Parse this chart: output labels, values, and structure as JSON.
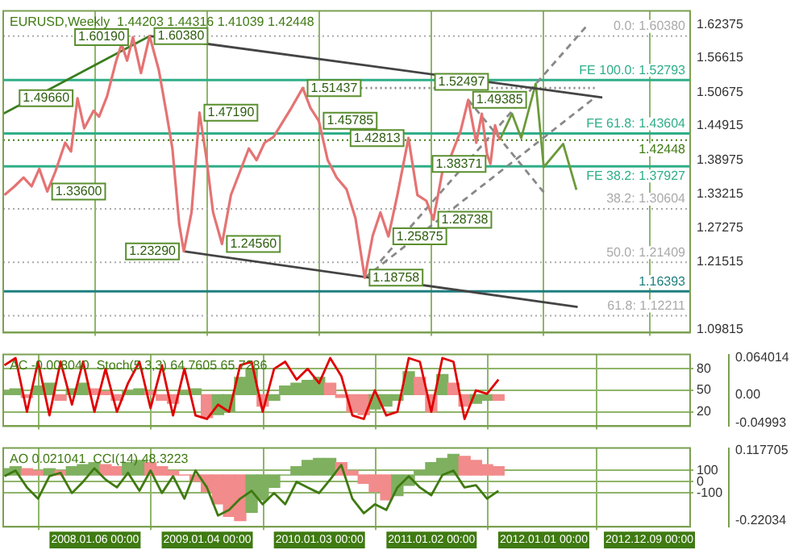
{
  "chart_data": [
    {
      "type": "line",
      "title": "EURUSD,Weekly  1.44203 1.44316 1.41039 1.42448",
      "marker": "none",
      "grid": "x",
      "tick_labels": "y",
      "xlim": [
        "2007-03-14",
        "2013-04-20"
      ],
      "xticks": [
        {
          "value": "2008-01-06",
          "label": null
        },
        {
          "value": "2009-01-04",
          "label": null
        },
        {
          "value": "2010-01-03",
          "label": null
        },
        {
          "value": "2011-01-02",
          "label": null
        },
        {
          "value": "2012-01-01",
          "label": null
        },
        {
          "value": "2012-12-09",
          "label": null
        }
      ],
      "ylim": [
        1.093,
        1.647
      ],
      "yticks": [
        1.62375,
        1.56615,
        1.50675,
        1.44915,
        1.38975,
        1.33215,
        1.27275,
        1.21515,
        1.09815
      ],
      "series": [
        {
          "color": "#e57373",
          "x": [
            "2007-03-18",
            "2007-04-20",
            "2007-05-19",
            "2007-06-14",
            "2007-07-09",
            "2007-08-04",
            "2007-08-30",
            "2007-10-01",
            "2007-10-20",
            "2007-11-10",
            "2007-12-02",
            "2008-01-01",
            "2008-01-19",
            "2008-02-14",
            "2008-03-14",
            "2008-04-01",
            "2008-04-19",
            "2008-05-08",
            "2008-06-03",
            "2008-07-01",
            "2008-07-31",
            "2008-08-25",
            "2008-09-13",
            "2008-10-05",
            "2008-10-20",
            "2008-11-14",
            "2008-12-10",
            "2009-01-01",
            "2009-01-23",
            "2009-02-21",
            "2009-03-22",
            "2009-04-20",
            "2009-05-19",
            "2009-06-13",
            "2009-07-09",
            "2009-08-07",
            "2009-09-05",
            "2009-10-04",
            "2009-11-10",
            "2009-12-05",
            "2010-01-01",
            "2010-01-30",
            "2010-02-28",
            "2010-04-01",
            "2010-04-30",
            "2010-05-30",
            "2010-06-25",
            "2010-07-20",
            "2010-08-15",
            "2010-09-13",
            "2010-10-19",
            "2010-11-17",
            "2010-12-16",
            "2011-01-08",
            "2011-02-06",
            "2011-03-08",
            "2011-04-06",
            "2011-05-01",
            "2011-05-27",
            "2011-06-14",
            "2011-07-01",
            "2011-07-12",
            "2011-07-27",
            "2011-08-11"
          ],
          "values": [
            1.33,
            1.345,
            1.36,
            1.345,
            1.375,
            1.336,
            1.37,
            1.42,
            1.405,
            1.4966,
            1.445,
            1.475,
            1.465,
            1.5,
            1.56,
            1.59,
            1.5615,
            1.6019,
            1.54,
            1.6038,
            1.545,
            1.47,
            1.41,
            1.28,
            1.2329,
            1.3,
            1.4719,
            1.395,
            1.3,
            1.2456,
            1.33,
            1.37,
            1.41,
            1.39,
            1.42,
            1.43,
            1.455,
            1.48,
            1.5143,
            1.48,
            1.4578,
            1.39,
            1.36,
            1.34,
            1.29,
            1.1875,
            1.26,
            1.3,
            1.2587,
            1.33,
            1.4281,
            1.33,
            1.32,
            1.28738,
            1.37,
            1.4,
            1.44,
            1.49385,
            1.42,
            1.47,
            1.4,
            1.38371,
            1.45,
            1.42448
          ]
        },
        {
          "color": "#3a7d1e",
          "x": [
            "2007-03-14",
            "2008-07-01"
          ],
          "values": [
            1.47,
            1.6038
          ]
        },
        {
          "color": "#444444",
          "x": [
            "2008-07-01",
            "2012-07-09"
          ],
          "values": [
            1.6038,
            1.498
          ]
        },
        {
          "color": "#444444",
          "x": [
            "2008-10-20",
            "2012-04-20"
          ],
          "values": [
            1.2329,
            1.137
          ]
        },
        {
          "color": "#6b9a3a",
          "x": [
            "2011-08-11",
            "2011-09-20",
            "2011-10-20",
            "2011-12-06",
            "2012-01-01",
            "2012-03-04",
            "2012-04-16"
          ],
          "values": [
            1.42448,
            1.47,
            1.428,
            1.522,
            1.378,
            1.418,
            1.339
          ]
        },
        {
          "color": "#888888",
          "line_style": "dashed",
          "x": [
            "2010-07-20",
            "2012-05-19"
          ],
          "values": [
            1.216,
            1.621
          ]
        },
        {
          "color": "#888888",
          "line_style": "dashed",
          "x": [
            "2010-05-30",
            "2012-06-20"
          ],
          "values": [
            1.1875,
            1.5
          ]
        },
        {
          "color": "#888888",
          "line_style": "dashed",
          "x": [
            "2011-05-01",
            "2012-01-08"
          ],
          "values": [
            1.49385,
            1.33
          ]
        },
        {
          "color": "#888888",
          "line_style": "dotted",
          "x": [
            "2009-11-10",
            "2012-06-17"
          ],
          "values": [
            1.5143,
            1.5143
          ]
        }
      ],
      "ref_lines": [
        {
          "axis": "y",
          "value": 1.6038,
          "label": "0.0: 1.60380",
          "color": "#aaaaaa",
          "line_style": "dotted"
        },
        {
          "axis": "y",
          "value": 1.52793,
          "label": "FE 100.0: 1.52793",
          "color": "#2fae88"
        },
        {
          "axis": "y",
          "value": 1.43604,
          "label": "FE 61.8: 1.43604",
          "color": "#2fae88"
        },
        {
          "axis": "y",
          "value": 1.42448,
          "label": "1.42448",
          "color": "#3f7a12",
          "line_style": "dotted"
        },
        {
          "axis": "y",
          "value": 1.37927,
          "label": "FE 38.2: 1.37927",
          "color": "#2fae88"
        },
        {
          "axis": "y",
          "value": 1.30604,
          "label": "38.2: 1.30604",
          "color": "#aaaaaa",
          "line_style": "dotted"
        },
        {
          "axis": "y",
          "value": 1.21409,
          "label": "50.0: 1.21409",
          "color": "#aaaaaa",
          "line_style": "dotted"
        },
        {
          "axis": "y",
          "value": 1.16393,
          "label": "1.16393",
          "color": "#1e7f7f"
        },
        {
          "axis": "y",
          "value": 1.12211,
          "label": "61.8: 1.12211",
          "color": "#aaaaaa",
          "line_style": "dotted"
        }
      ],
      "annotations": [
        {
          "text": "1.60380",
          "x": "2008-07-01",
          "y": 1.6038
        },
        {
          "text": "1.60190",
          "x": "2008-05-08",
          "y": 1.6019
        },
        {
          "text": "1.49660",
          "x": "2007-11-10",
          "y": 1.4966
        },
        {
          "text": "1.33600",
          "x": "2007-08-04",
          "y": 1.336
        },
        {
          "text": "1.47190",
          "x": "2008-12-10",
          "y": 1.4719
        },
        {
          "text": "1.24560",
          "x": "2009-02-21",
          "y": 1.2456
        },
        {
          "text": "1.23290",
          "x": "2008-10-20",
          "y": 1.2329
        },
        {
          "text": "1.51437",
          "x": "2009-11-10",
          "y": 1.5143
        },
        {
          "text": "1.45785",
          "x": "2010-01-01",
          "y": 1.4578
        },
        {
          "text": "1.18758",
          "x": "2010-05-30",
          "y": 1.1875
        },
        {
          "text": "1.42813",
          "x": "2010-10-19",
          "y": 1.4281
        },
        {
          "text": "1.25875",
          "x": "2010-08-15",
          "y": 1.2587
        },
        {
          "text": "1.28738",
          "x": "2011-01-08",
          "y": 1.28738
        },
        {
          "text": "1.49385",
          "x": "2011-05-01",
          "y": 1.49385
        },
        {
          "text": "1.52497",
          "x": "2011-07-20",
          "y": 1.52497
        },
        {
          "text": "1.38371",
          "x": "2011-07-12",
          "y": 1.38371
        }
      ]
    },
    {
      "type": "line",
      "title": "AC -0.008040  Stoch(5,3,3) 64.7605 65.7286",
      "marker": "none",
      "grid": true,
      "tick_labels": "y",
      "xlim": [
        "2007-03-14",
        "2013-04-20"
      ],
      "xticks": [
        {
          "value": "2008-01-06",
          "label": null
        },
        {
          "value": "2009-01-04",
          "label": null
        },
        {
          "value": "2010-01-03",
          "label": null
        },
        {
          "value": "2011-01-02",
          "label": null
        },
        {
          "value": "2012-01-01",
          "label": null
        },
        {
          "value": "2012-12-09",
          "label": null
        }
      ],
      "ylim": [
        0,
        100
      ],
      "yticks": [
        20,
        50,
        80
      ],
      "y2lim": [
        -0.055,
        0.07
      ],
      "y2ticks": [
        -0.04993,
        {
          "value": 0,
          "label": "0.00"
        },
        0.064014
      ],
      "series": [
        {
          "type": "bar",
          "axis": "y2",
          "x": [
            "2007-03-18",
            "2007-04-23",
            "2007-05-30",
            "2007-07-05",
            "2007-08-11",
            "2007-09-16",
            "2007-10-23",
            "2007-11-28",
            "2008-01-04",
            "2008-02-09",
            "2008-03-17",
            "2008-04-22",
            "2008-05-29",
            "2008-07-04",
            "2008-08-10",
            "2008-09-15",
            "2008-10-22",
            "2008-11-27",
            "2009-01-03",
            "2009-02-08",
            "2009-03-16",
            "2009-04-21",
            "2009-05-28",
            "2009-07-03",
            "2009-08-09",
            "2009-09-14",
            "2009-10-21",
            "2009-11-26",
            "2010-01-02",
            "2010-02-07",
            "2010-03-15",
            "2010-04-20",
            "2010-05-27",
            "2010-07-02",
            "2010-08-08",
            "2010-09-13",
            "2010-10-20",
            "2010-11-25",
            "2011-01-01",
            "2011-02-06",
            "2011-03-14",
            "2011-04-19",
            "2011-05-26",
            "2011-07-01",
            "2011-08-07"
          ],
          "values": [
            0.005,
            0.01,
            -0.005,
            0.015,
            0.02,
            -0.01,
            0.01,
            0.02,
            0.01,
            0.005,
            -0.01,
            0.005,
            0.01,
            0.005,
            -0.01,
            -0.015,
            0.005,
            0.01,
            -0.04,
            -0.035,
            -0.03,
            0.03,
            0.045,
            -0.02,
            -0.01,
            0.015,
            0.02,
            0.025,
            0.03,
            0.02,
            -0.005,
            -0.03,
            -0.035,
            -0.025,
            -0.02,
            -0.01,
            0.04,
            0.03,
            -0.03,
            0.035,
            0.02,
            -0.02,
            -0.015,
            -0.01,
            -0.01
          ],
          "colors": [
            "#7fb05f",
            "#7fb05f",
            "#f28b8b",
            "#7fb05f",
            "#7fb05f",
            "#f28b8b",
            "#7fb05f",
            "#7fb05f",
            "#f28b8b",
            "#f28b8b",
            "#f28b8b",
            "#7fb05f",
            "#7fb05f",
            "#f28b8b",
            "#f28b8b",
            "#f28b8b",
            "#7fb05f",
            "#7fb05f",
            "#f28b8b",
            "#7fb05f",
            "#7fb05f",
            "#7fb05f",
            "#7fb05f",
            "#f28b8b",
            "#7fb05f",
            "#7fb05f",
            "#7fb05f",
            "#7fb05f",
            "#7fb05f",
            "#f28b8b",
            "#f28b8b",
            "#f28b8b",
            "#f28b8b",
            "#7fb05f",
            "#7fb05f",
            "#7fb05f",
            "#7fb05f",
            "#f28b8b",
            "#f28b8b",
            "#7fb05f",
            "#f28b8b",
            "#f28b8b",
            "#7fb05f",
            "#7fb05f",
            "#f28b8b"
          ]
        },
        {
          "axis": "y",
          "color": "#e00000",
          "x": [
            "2007-03-18",
            "2007-04-23",
            "2007-05-30",
            "2007-07-05",
            "2007-08-11",
            "2007-09-16",
            "2007-10-23",
            "2007-11-28",
            "2008-01-04",
            "2008-02-09",
            "2008-03-17",
            "2008-04-22",
            "2008-05-29",
            "2008-07-04",
            "2008-08-10",
            "2008-09-15",
            "2008-10-22",
            "2008-11-27",
            "2009-01-03",
            "2009-02-08",
            "2009-03-16",
            "2009-04-21",
            "2009-05-28",
            "2009-07-03",
            "2009-08-09",
            "2009-09-14",
            "2009-10-21",
            "2009-11-26",
            "2010-01-02",
            "2010-02-07",
            "2010-03-15",
            "2010-04-20",
            "2010-05-27",
            "2010-07-02",
            "2010-08-08",
            "2010-09-13",
            "2010-10-20",
            "2010-11-25",
            "2011-01-01",
            "2011-02-06",
            "2011-03-14",
            "2011-04-19",
            "2011-05-26",
            "2011-07-01",
            "2011-08-07"
          ],
          "values": [
            85,
            95,
            20,
            90,
            15,
            90,
            30,
            90,
            20,
            80,
            20,
            60,
            90,
            25,
            85,
            15,
            80,
            15,
            10,
            30,
            20,
            85,
            90,
            20,
            80,
            90,
            65,
            80,
            60,
            95,
            70,
            15,
            10,
            50,
            15,
            20,
            95,
            90,
            20,
            95,
            90,
            10,
            50,
            45,
            65
          ]
        }
      ]
    },
    {
      "type": "line",
      "title": "AO 0.021041  CCI(14) 48.3223",
      "marker": "none",
      "grid": true,
      "xlim": [
        "2007-03-14",
        "2013-04-20"
      ],
      "xticks": [
        {
          "value": "2008-01-06",
          "label": "2008.01.06 00:00"
        },
        {
          "value": "2009-01-04",
          "label": "2009.01.04 00:00"
        },
        {
          "value": "2010-01-03",
          "label": "2010.01.03 00:00"
        },
        {
          "value": "2011-01-02",
          "label": "2011.01.02 00:00"
        },
        {
          "value": "2012-01-01",
          "label": "2012.01.01 00:00"
        },
        {
          "value": "2012-12-09",
          "label": "2012.12.09 00:00"
        }
      ],
      "ylim": [
        -400,
        300
      ],
      "yticks": [
        -100,
        0,
        100
      ],
      "y2lim": [
        -0.25,
        0.13
      ],
      "y2ticks": [
        -0.22034,
        0.117705
      ],
      "series": [
        {
          "type": "bar",
          "axis": "y2",
          "x": [
            "2007-03-18",
            "2007-04-23",
            "2007-05-30",
            "2007-07-05",
            "2007-08-11",
            "2007-09-16",
            "2007-10-23",
            "2007-11-28",
            "2008-01-04",
            "2008-02-09",
            "2008-03-17",
            "2008-04-22",
            "2008-05-29",
            "2008-07-04",
            "2008-08-10",
            "2008-09-15",
            "2008-10-22",
            "2008-11-27",
            "2009-01-03",
            "2009-02-08",
            "2009-03-16",
            "2009-04-21",
            "2009-05-28",
            "2009-07-03",
            "2009-08-09",
            "2009-09-14",
            "2009-10-21",
            "2009-11-26",
            "2010-01-02",
            "2010-02-07",
            "2010-03-15",
            "2010-04-20",
            "2010-05-27",
            "2010-07-02",
            "2010-08-08",
            "2010-09-13",
            "2010-10-20",
            "2010-11-25",
            "2011-01-01",
            "2011-02-06",
            "2011-03-14",
            "2011-04-19",
            "2011-05-26",
            "2011-07-01",
            "2011-08-07"
          ],
          "values": [
            0.03,
            0.04,
            0.03,
            0.02,
            0.03,
            0.02,
            0.04,
            0.05,
            0.06,
            0.05,
            0.04,
            0.06,
            0.07,
            0.06,
            0.04,
            0.02,
            0.0,
            -0.03,
            -0.08,
            -0.14,
            -0.2,
            -0.22,
            -0.18,
            -0.12,
            -0.06,
            0.0,
            0.04,
            0.07,
            0.08,
            0.08,
            0.06,
            0.02,
            -0.04,
            -0.08,
            -0.12,
            -0.1,
            -0.05,
            0.02,
            0.06,
            0.08,
            0.1,
            0.09,
            0.07,
            0.05,
            0.04
          ],
          "colors": [
            "#7fb05f",
            "#7fb05f",
            "#f28b8b",
            "#f28b8b",
            "#7fb05f",
            "#f28b8b",
            "#7fb05f",
            "#7fb05f",
            "#7fb05f",
            "#f28b8b",
            "#f28b8b",
            "#7fb05f",
            "#7fb05f",
            "#f28b8b",
            "#f28b8b",
            "#f28b8b",
            "#f28b8b",
            "#f28b8b",
            "#f28b8b",
            "#f28b8b",
            "#f28b8b",
            "#f28b8b",
            "#7fb05f",
            "#7fb05f",
            "#7fb05f",
            "#7fb05f",
            "#7fb05f",
            "#7fb05f",
            "#7fb05f",
            "#7fb05f",
            "#f28b8b",
            "#f28b8b",
            "#f28b8b",
            "#f28b8b",
            "#f28b8b",
            "#7fb05f",
            "#7fb05f",
            "#7fb05f",
            "#7fb05f",
            "#7fb05f",
            "#7fb05f",
            "#f28b8b",
            "#f28b8b",
            "#f28b8b",
            "#f28b8b"
          ]
        },
        {
          "axis": "y",
          "color": "#3f7a12",
          "x": [
            "2007-03-18",
            "2007-04-23",
            "2007-05-30",
            "2007-07-05",
            "2007-08-11",
            "2007-09-16",
            "2007-10-23",
            "2007-11-28",
            "2008-01-04",
            "2008-02-09",
            "2008-03-17",
            "2008-04-22",
            "2008-05-29",
            "2008-07-04",
            "2008-08-10",
            "2008-09-15",
            "2008-10-22",
            "2008-11-27",
            "2009-01-03",
            "2009-02-08",
            "2009-03-16",
            "2009-04-21",
            "2009-05-28",
            "2009-07-03",
            "2009-08-09",
            "2009-09-14",
            "2009-10-21",
            "2009-11-26",
            "2010-01-02",
            "2010-02-07",
            "2010-03-15",
            "2010-04-20",
            "2010-05-27",
            "2010-07-02",
            "2010-08-08",
            "2010-09-13",
            "2010-10-20",
            "2010-11-25",
            "2011-01-01",
            "2011-02-06",
            "2011-03-14",
            "2011-04-19",
            "2011-05-26",
            "2011-07-01",
            "2011-08-07"
          ],
          "values": [
            50,
            100,
            -50,
            -150,
            50,
            80,
            -100,
            0,
            120,
            20,
            -50,
            80,
            -80,
            100,
            -100,
            50,
            -150,
            100,
            -50,
            -300,
            -250,
            -150,
            -80,
            -200,
            -100,
            -200,
            0,
            -50,
            -100,
            20,
            150,
            -150,
            -280,
            -200,
            -250,
            -50,
            50,
            -50,
            -120,
            60,
            100,
            -50,
            -30,
            -150,
            -80
          ]
        }
      ]
    }
  ]
}
